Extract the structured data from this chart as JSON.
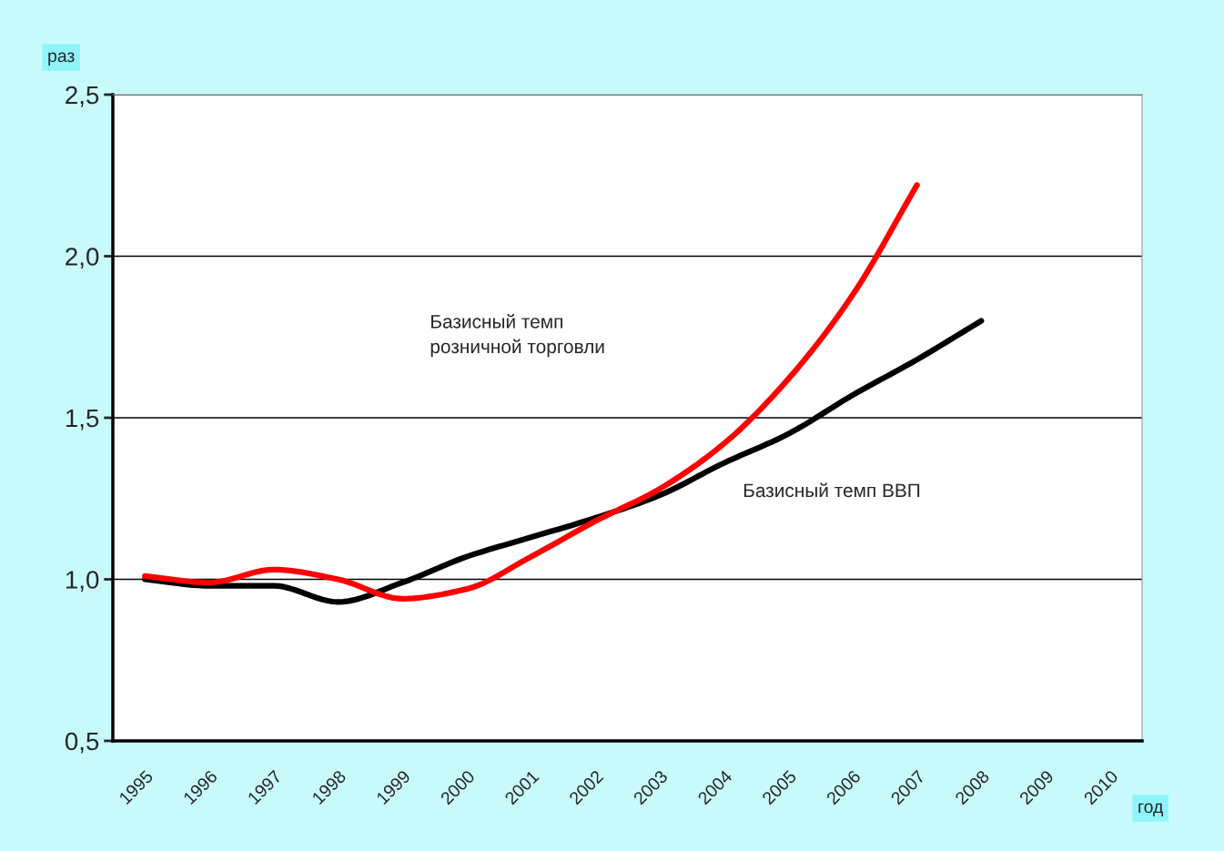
{
  "chart_data": {
    "type": "line",
    "ylabel": "раз",
    "xlabel": "год",
    "categories": [
      "1995",
      "1996",
      "1997",
      "1998",
      "1999",
      "2000",
      "2001",
      "2002",
      "2003",
      "2004",
      "2005",
      "2006",
      "2007",
      "2008",
      "2009",
      "2010"
    ],
    "series": [
      {
        "name": "Базисный темп ВВП",
        "color": "#000000",
        "values": [
          1.0,
          0.98,
          0.98,
          0.93,
          0.99,
          1.07,
          1.13,
          1.19,
          1.26,
          1.36,
          1.45,
          1.57,
          1.68,
          1.8,
          null,
          null
        ]
      },
      {
        "color": "#ff0000",
        "values": [
          1.01,
          0.99,
          1.03,
          1.0,
          0.94,
          0.97,
          1.07,
          1.18,
          1.28,
          1.42,
          1.62,
          1.88,
          2.22,
          null,
          null,
          null
        ]
      }
    ],
    "annotations": [
      "Базисный темп\nрозничной торговли"
    ],
    "ylim": [
      0.5,
      2.5
    ],
    "yticks": [
      {
        "value": 0.5,
        "label": "0,5"
      },
      {
        "value": 1.0,
        "label": "1,0"
      },
      {
        "value": 1.5,
        "label": "1,5"
      },
      {
        "value": 2.0,
        "label": "2,0"
      },
      {
        "value": 2.5,
        "label": "2,5"
      }
    ],
    "grid": "y",
    "legend": false,
    "marker": "none",
    "line_style": "solid"
  }
}
